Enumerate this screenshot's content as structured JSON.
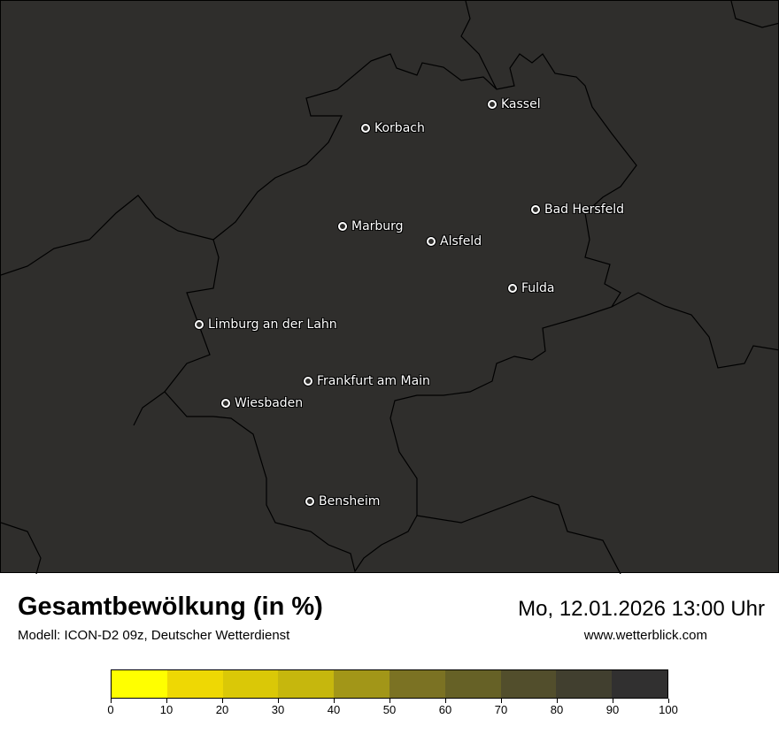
{
  "title": "Gesamtbewölkung (in %)",
  "subtitle": "Modell: ICON-D2 09z, Deutscher Wetterdienst",
  "datetime": "Mo, 12.01.2026 13:00 Uhr",
  "website": "www.wetterblick.com",
  "map_background": "#2f2e2c",
  "cities": [
    {
      "name": "Kassel"
    },
    {
      "name": "Korbach"
    },
    {
      "name": "Bad Hersfeld"
    },
    {
      "name": "Marburg"
    },
    {
      "name": "Alsfeld"
    },
    {
      "name": "Fulda"
    },
    {
      "name": "Limburg an der Lahn"
    },
    {
      "name": "Frankfurt am Main"
    },
    {
      "name": "Wiesbaden"
    },
    {
      "name": "Bensheim"
    }
  ],
  "colorbar": {
    "colors": [
      "#ffff00",
      "#eed804",
      "#dac807",
      "#c6b70d",
      "#a29618",
      "#7b7223",
      "#666126",
      "#524e2c",
      "#413f2f",
      "#313030"
    ],
    "ticks": [
      "0",
      "10",
      "20",
      "30",
      "40",
      "50",
      "60",
      "70",
      "80",
      "90",
      "100"
    ]
  }
}
